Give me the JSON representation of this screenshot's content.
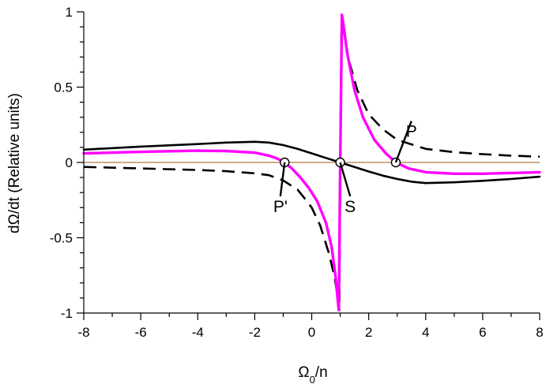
{
  "chart_data": {
    "type": "line",
    "title": "",
    "xlabel": "Ω",
    "xlabel_sub": "0",
    "xlabel_tail": "/n",
    "ylabel": "dΩ/dt (Relative units)",
    "xlim": [
      -8,
      8
    ],
    "ylim": [
      -1,
      1
    ],
    "grid": false,
    "x_ticks": [
      -8,
      -6,
      -4,
      -2,
      0,
      2,
      4,
      6,
      8
    ],
    "x_tick_labels": [
      "-8",
      "-6",
      "-4",
      "-2",
      "0",
      "2",
      "4",
      "6",
      "8"
    ],
    "y_ticks": [
      -1,
      -0.5,
      0,
      0.5,
      1
    ],
    "y_tick_labels": [
      "-1",
      "-0.5",
      "0",
      "0.5",
      "1"
    ],
    "zero_line": {
      "y": 0,
      "color": "#b07a4a"
    },
    "series": [
      {
        "style": "solid",
        "color": "#000000",
        "points": [
          [
            -8,
            0.085
          ],
          [
            -6,
            0.105
          ],
          [
            -4,
            0.122
          ],
          [
            -3,
            0.132
          ],
          [
            -2,
            0.137
          ],
          [
            -1.5,
            0.132
          ],
          [
            -1,
            0.115
          ],
          [
            -0.5,
            0.09
          ],
          [
            0,
            0.06
          ],
          [
            0.5,
            0.03
          ],
          [
            1,
            0
          ],
          [
            1.5,
            -0.03
          ],
          [
            2,
            -0.06
          ],
          [
            2.5,
            -0.088
          ],
          [
            3,
            -0.11
          ],
          [
            3.5,
            -0.128
          ],
          [
            4,
            -0.137
          ],
          [
            5,
            -0.132
          ],
          [
            6,
            -0.122
          ],
          [
            7,
            -0.11
          ],
          [
            8,
            -0.095
          ]
        ]
      },
      {
        "style": "dashed",
        "color": "#000000",
        "points": [
          [
            -8,
            -0.03
          ],
          [
            -6,
            -0.04
          ],
          [
            -4,
            -0.05
          ],
          [
            -3,
            -0.058
          ],
          [
            -2,
            -0.072
          ],
          [
            -1.5,
            -0.085
          ],
          [
            -1,
            -0.12
          ],
          [
            -0.5,
            -0.18
          ],
          [
            -0.2,
            -0.25
          ],
          [
            0,
            -0.3
          ],
          [
            0.3,
            -0.42
          ],
          [
            0.6,
            -0.6
          ],
          [
            0.8,
            -0.76
          ],
          [
            0.9,
            -0.88
          ],
          [
            0.95,
            -0.95
          ],
          [
            0.97,
            -0.98
          ],
          [
            1.0,
            0
          ],
          [
            1.05,
            0.98
          ],
          [
            1.1,
            0.9
          ],
          [
            1.3,
            0.68
          ],
          [
            1.6,
            0.48
          ],
          [
            2,
            0.32
          ],
          [
            2.5,
            0.22
          ],
          [
            3,
            0.15
          ],
          [
            4,
            0.09
          ],
          [
            5,
            0.068
          ],
          [
            6,
            0.055
          ],
          [
            7,
            0.045
          ],
          [
            8,
            0.038
          ]
        ]
      },
      {
        "style": "solid",
        "color": "#ff00ff",
        "points": [
          [
            -8,
            0.06
          ],
          [
            -6,
            0.07
          ],
          [
            -4,
            0.078
          ],
          [
            -3,
            0.076
          ],
          [
            -2,
            0.065
          ],
          [
            -1.5,
            0.045
          ],
          [
            -1.2,
            0.025
          ],
          [
            -0.95,
            0
          ],
          [
            -0.7,
            -0.04
          ],
          [
            -0.4,
            -0.1
          ],
          [
            -0.1,
            -0.17
          ],
          [
            0.2,
            -0.26
          ],
          [
            0.5,
            -0.4
          ],
          [
            0.7,
            -0.56
          ],
          [
            0.85,
            -0.78
          ],
          [
            0.92,
            -0.93
          ],
          [
            0.95,
            -0.98
          ],
          [
            1.0,
            0
          ],
          [
            1.06,
            0.98
          ],
          [
            1.1,
            0.93
          ],
          [
            1.25,
            0.72
          ],
          [
            1.5,
            0.48
          ],
          [
            1.8,
            0.3
          ],
          [
            2.2,
            0.15
          ],
          [
            2.6,
            0.06
          ],
          [
            2.95,
            0
          ],
          [
            3.4,
            -0.04
          ],
          [
            4,
            -0.065
          ],
          [
            5,
            -0.075
          ],
          [
            6,
            -0.075
          ],
          [
            7,
            -0.07
          ],
          [
            8,
            -0.065
          ]
        ]
      }
    ],
    "markers": [
      {
        "x": -0.95,
        "y": 0,
        "shape": "open-circle"
      },
      {
        "x": 1.0,
        "y": 0,
        "shape": "open-circle"
      },
      {
        "x": 2.95,
        "y": 0,
        "shape": "open-circle"
      }
    ],
    "annotations": [
      {
        "text": "P'",
        "x": -1.1,
        "y": -0.33,
        "leader_to": [
          -0.95,
          0
        ]
      },
      {
        "text": "S",
        "x": 1.35,
        "y": -0.33,
        "leader_to": [
          1.0,
          0
        ]
      },
      {
        "text": "P",
        "x": 3.5,
        "y": 0.17,
        "leader_to": [
          2.95,
          0
        ]
      }
    ]
  }
}
